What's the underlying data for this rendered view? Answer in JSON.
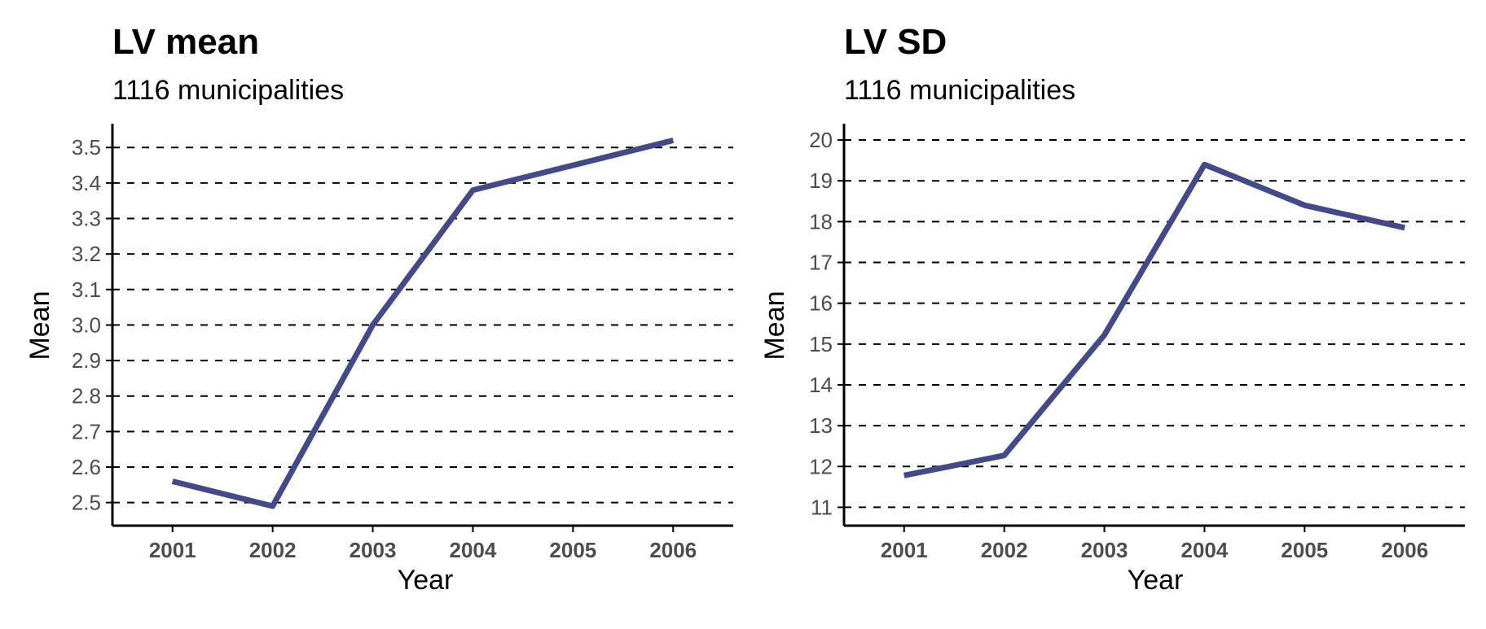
{
  "chart_data": [
    {
      "type": "line",
      "title": "LV mean",
      "subtitle": "1116 municipalities",
      "xlabel": "Year",
      "ylabel": "Mean",
      "x": [
        2001,
        2002,
        2003,
        2004,
        2005,
        2006
      ],
      "series": [
        {
          "values": [
            2.56,
            2.49,
            3.0,
            3.38,
            3.45,
            3.52
          ]
        }
      ],
      "yticks": [
        "2.5",
        "2.6",
        "2.7",
        "2.8",
        "2.9",
        "3.0",
        "3.1",
        "3.2",
        "3.3",
        "3.4",
        "3.5"
      ],
      "xticks": [
        "2001",
        "2002",
        "2003",
        "2004",
        "2005",
        "2006"
      ],
      "xlim": [
        2000.4,
        2006.6
      ],
      "ylim": [
        2.435,
        3.567
      ],
      "grid": "horizontal-dashed",
      "colors": {
        "line": "#424a8a",
        "grid": "#000000"
      }
    },
    {
      "type": "line",
      "title": "LV SD",
      "subtitle": "1116 municipalities",
      "xlabel": "Year",
      "ylabel": "Mean",
      "x": [
        2001,
        2002,
        2003,
        2004,
        2005,
        2006
      ],
      "series": [
        {
          "values": [
            11.78,
            12.27,
            15.22,
            19.4,
            18.4,
            17.85
          ]
        }
      ],
      "yticks": [
        "11",
        "12",
        "13",
        "14",
        "15",
        "16",
        "17",
        "18",
        "19",
        "20"
      ],
      "xticks": [
        "2001",
        "2002",
        "2003",
        "2004",
        "2005",
        "2006"
      ],
      "xlim": [
        2000.4,
        2006.6
      ],
      "ylim": [
        10.55,
        20.4
      ],
      "grid": "horizontal-dashed",
      "colors": {
        "line": "#424a8a",
        "grid": "#000000"
      }
    }
  ]
}
